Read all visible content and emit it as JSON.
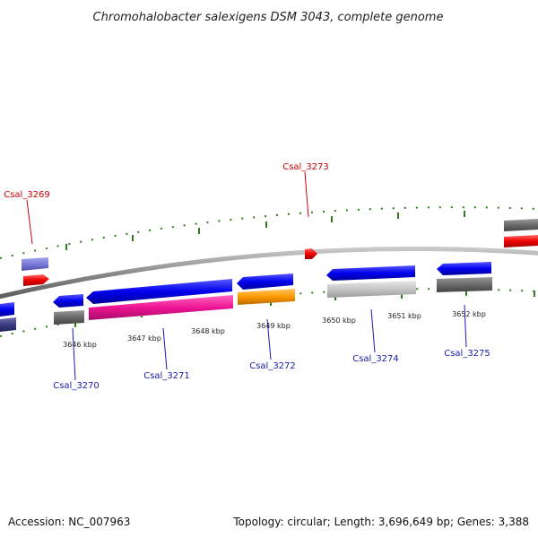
{
  "title": "Chromohalobacter salexigens DSM 3043, complete genome",
  "footer": {
    "accession": "Accession: NC_007963",
    "summary": "Topology: circular; Length: 3,696,649 bp; Genes: 3,388"
  },
  "colors": {
    "label_top": "#cc0000",
    "label_bottom": "#1a1aaa",
    "tick": "#2e7d1a",
    "backbone": "#8a8a8a"
  },
  "ruler": {
    "ticks": [
      {
        "name": "tick-label-3646",
        "label": "3646 kbp"
      },
      {
        "name": "tick-label-3647",
        "label": "3647 kbp"
      },
      {
        "name": "tick-label-3648",
        "label": "3648 kbp"
      },
      {
        "name": "tick-label-3649",
        "label": "3649 kbp"
      },
      {
        "name": "tick-label-3650",
        "label": "3650 kbp"
      },
      {
        "name": "tick-label-3651",
        "label": "3651 kbp"
      },
      {
        "name": "tick-label-3652",
        "label": "3652 kbp"
      }
    ]
  },
  "gene_labels": {
    "csal_3269": "Csal_3269",
    "csal_3273": "Csal_3273",
    "csal_3270": "Csal_3270",
    "csal_3271": "Csal_3271",
    "csal_3272": "Csal_3272",
    "csal_3274": "Csal_3274",
    "csal_3275": "Csal_3275"
  }
}
